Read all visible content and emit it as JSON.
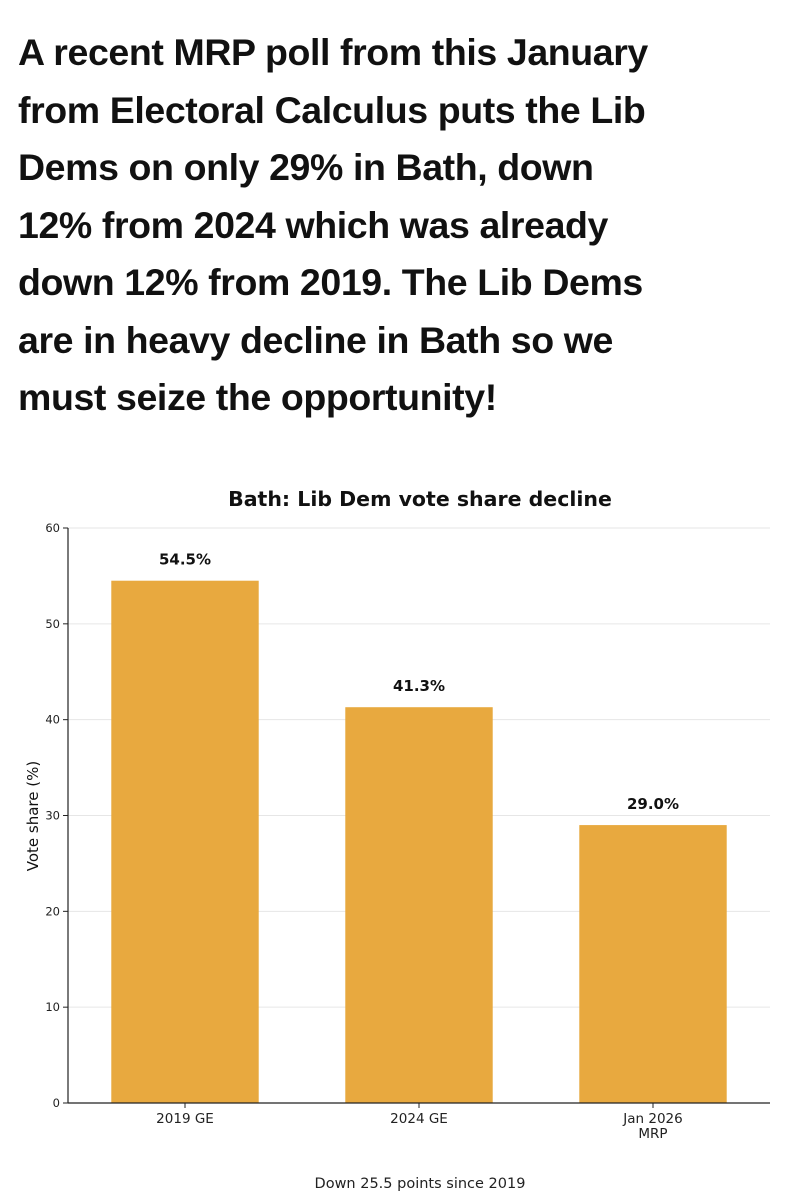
{
  "post": {
    "headline": "A recent MRP poll from this January\nfrom Electoral Calculus puts the Lib\nDems on only 29% in Bath, down\n12% from 2024 which was already\ndown 12% from 2019. The Lib Dems\nare in heavy decline in Bath so we\nmust seize the opportunity!"
  },
  "chart_data": {
    "type": "bar",
    "title": "Bath: Lib Dem vote share decline",
    "categories": [
      "2019 GE",
      "2024 GE",
      "Jan 2026\nMRP"
    ],
    "values": [
      54.5,
      41.3,
      29.0
    ],
    "data_labels": [
      "54.5%",
      "41.3%",
      "29.0%"
    ],
    "xlabel": "",
    "ylabel": "Vote share (%)",
    "ylim": [
      0,
      60
    ],
    "yticks": [
      0,
      10,
      20,
      30,
      40,
      50,
      60
    ],
    "grid": true,
    "bar_color": "#E8A93F",
    "footnote": "Down 25.5 points since 2019"
  }
}
